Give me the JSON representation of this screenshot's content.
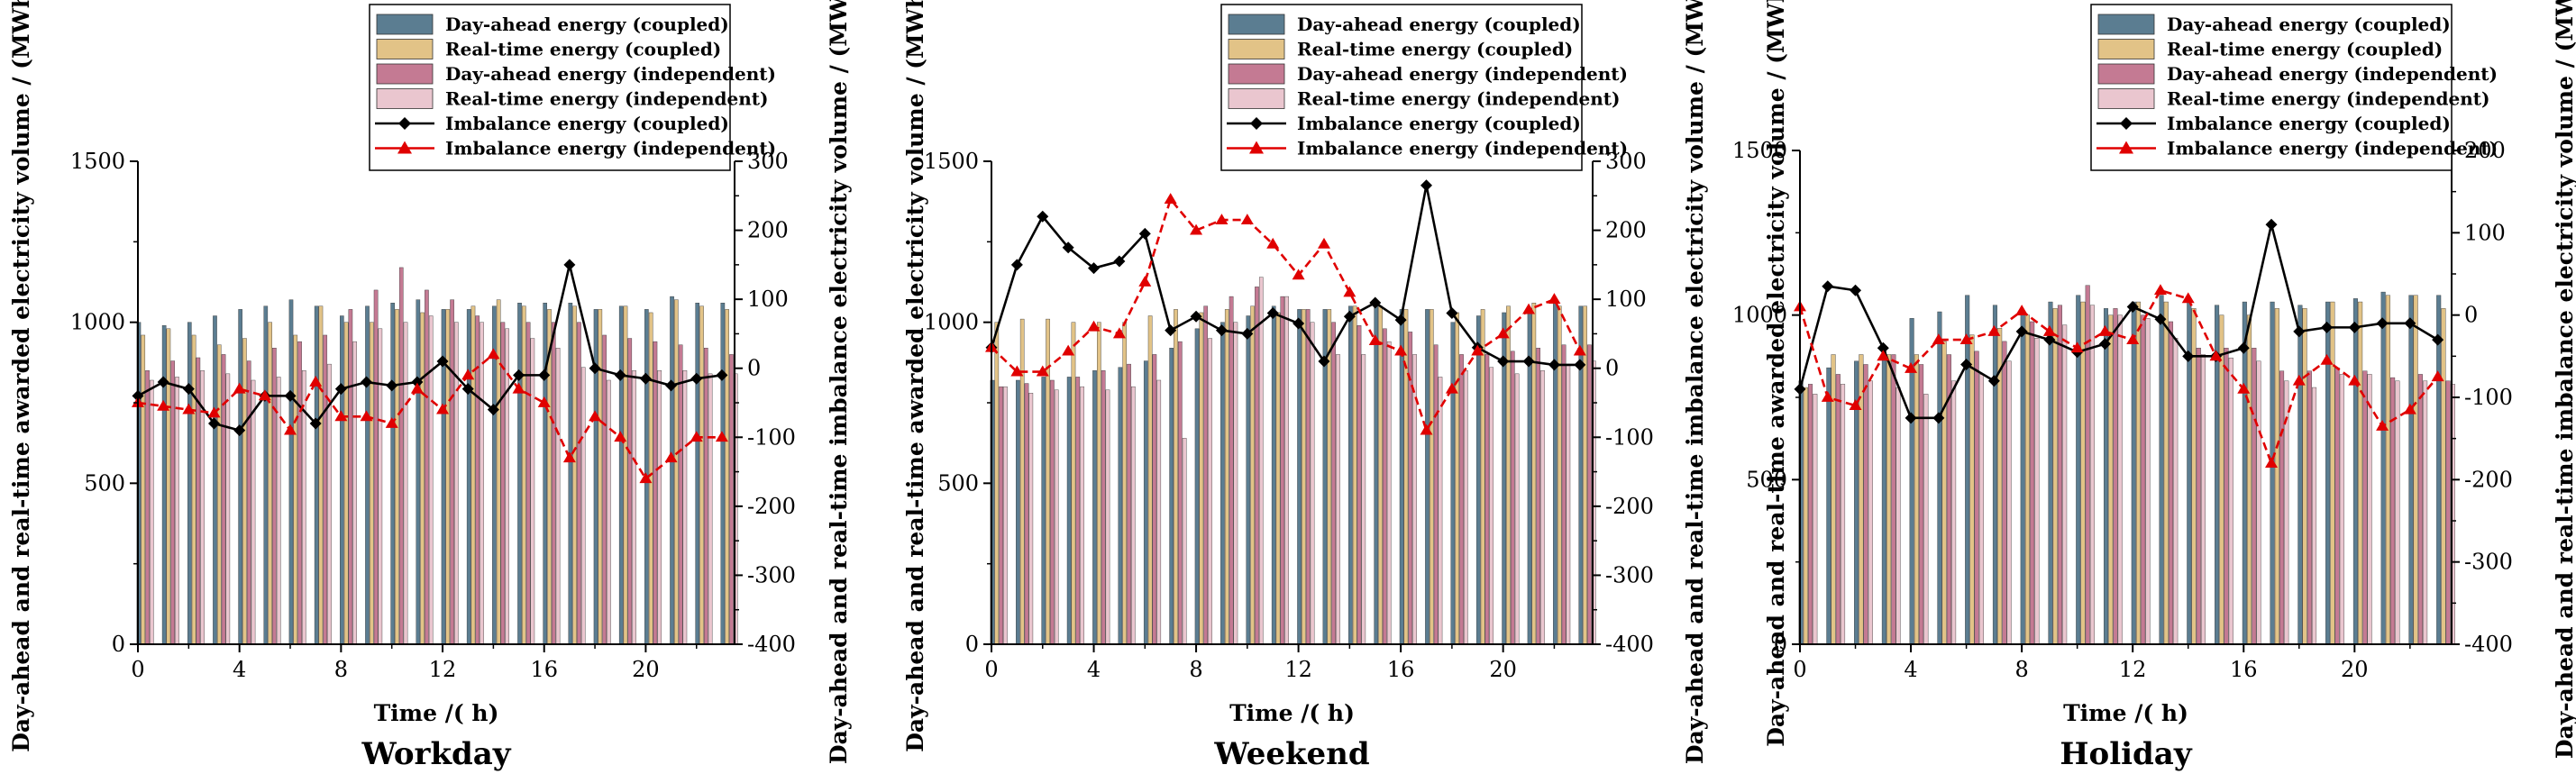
{
  "colors": {
    "da_coupled": "#5b7d91",
    "rt_coupled": "#e2c387",
    "da_independent": "#c47a93",
    "rt_independent": "#eac6cf",
    "imb_coupled": "#000000",
    "imb_independent": "#e00000"
  },
  "chart_data": [
    {
      "type": "bar",
      "title": "Workday",
      "xlabel": "Time /( h)",
      "ylabel": "Day-ahead and real-time awarded electricity volume / (MWh)",
      "y2label": "Day-ahead and real-time imbalance electricity volume / (MWh)",
      "xlim": [
        0,
        23.5
      ],
      "xticks": [
        0,
        4,
        8,
        12,
        16,
        20
      ],
      "ylim": [
        0,
        1500
      ],
      "yticks": [
        0,
        500,
        1000,
        1500
      ],
      "y2lim": [
        -400,
        300
      ],
      "y2ticks": [
        -400,
        -300,
        -200,
        -100,
        0,
        100,
        200,
        300
      ],
      "legend": [
        "Day-ahead energy (coupled)",
        "Real-time energy (coupled)",
        "Day-ahead energy (independent)",
        "Real-time energy (independent)",
        "Imbalance energy (coupled)",
        "Imbalance energy (independent)"
      ],
      "legend_position": "top-right",
      "x": [
        0,
        1,
        2,
        3,
        4,
        5,
        6,
        7,
        8,
        9,
        10,
        11,
        12,
        13,
        14,
        15,
        16,
        17,
        18,
        19,
        20,
        21,
        22,
        23
      ],
      "series": [
        {
          "name": "Day-ahead energy (coupled)",
          "kind": "bar",
          "axis": "left",
          "values": [
            1000,
            990,
            1000,
            1020,
            1040,
            1050,
            1070,
            1050,
            1020,
            1050,
            1060,
            1070,
            1040,
            1040,
            1050,
            1060,
            1060,
            1060,
            1040,
            1050,
            1040,
            1080,
            1060,
            1060
          ]
        },
        {
          "name": "Real-time energy (coupled)",
          "kind": "bar",
          "axis": "left",
          "values": [
            960,
            980,
            960,
            930,
            950,
            1000,
            960,
            1050,
            1000,
            1000,
            1040,
            1030,
            1040,
            1050,
            1070,
            1050,
            1040,
            1050,
            1040,
            1050,
            1030,
            1070,
            1050,
            1040
          ]
        },
        {
          "name": "Day-ahead energy (independent)",
          "kind": "bar",
          "axis": "left",
          "values": [
            850,
            880,
            890,
            900,
            880,
            920,
            940,
            960,
            1040,
            1100,
            1170,
            1100,
            1070,
            1020,
            1000,
            1000,
            1000,
            1000,
            960,
            950,
            940,
            930,
            920,
            900
          ]
        },
        {
          "name": "Real-time energy (independent)",
          "kind": "bar",
          "axis": "left",
          "values": [
            820,
            830,
            850,
            840,
            820,
            830,
            850,
            870,
            940,
            980,
            1000,
            1020,
            1000,
            1000,
            980,
            950,
            920,
            860,
            820,
            850,
            850,
            850,
            840,
            840
          ]
        },
        {
          "name": "Imbalance energy (coupled)",
          "kind": "line",
          "axis": "right",
          "values": [
            -40,
            -20,
            -30,
            -80,
            -90,
            -40,
            -40,
            -80,
            -30,
            -20,
            -25,
            -20,
            10,
            -30,
            -60,
            -10,
            -10,
            150,
            0,
            -10,
            -15,
            -25,
            -15,
            -10
          ]
        },
        {
          "name": "Imbalance energy (independent)",
          "kind": "line",
          "axis": "right",
          "values": [
            -50,
            -55,
            -60,
            -65,
            -30,
            -40,
            -90,
            -20,
            -70,
            -70,
            -80,
            -30,
            -60,
            -10,
            20,
            -30,
            -50,
            -130,
            -70,
            -100,
            -160,
            -130,
            -100,
            -100
          ]
        }
      ]
    },
    {
      "type": "bar",
      "title": "Weekend",
      "xlabel": "Time /( h)",
      "ylabel": "Day-ahead and real-time awarded electricity volume / (MWh)",
      "y2label": "Day-ahead and real-time imbalance electricity volume / (MWh)",
      "xlim": [
        0,
        23.5
      ],
      "xticks": [
        0,
        4,
        8,
        12,
        16,
        20
      ],
      "ylim": [
        0,
        1500
      ],
      "yticks": [
        0,
        500,
        1000,
        1500
      ],
      "y2lim": [
        -400,
        300
      ],
      "y2ticks": [
        -400,
        -300,
        -200,
        -100,
        0,
        100,
        200,
        300
      ],
      "legend": [
        "Day-ahead energy (coupled)",
        "Real-time energy (coupled)",
        "Day-ahead energy (independent)",
        "Real-time energy (independent)",
        "Imbalance energy (coupled)",
        "Imbalance energy (independent)"
      ],
      "legend_position": "top-right",
      "x": [
        0,
        1,
        2,
        3,
        4,
        5,
        6,
        7,
        8,
        9,
        10,
        11,
        12,
        13,
        14,
        15,
        16,
        17,
        18,
        19,
        20,
        21,
        22,
        23
      ],
      "series": [
        {
          "name": "Day-ahead energy (coupled)",
          "kind": "bar",
          "axis": "left",
          "values": [
            820,
            820,
            830,
            830,
            850,
            860,
            880,
            920,
            980,
            1000,
            1020,
            1050,
            1040,
            1040,
            1050,
            1060,
            1040,
            1040,
            1000,
            1020,
            1030,
            1040,
            1060,
            1050
          ]
        },
        {
          "name": "Real-time energy (coupled)",
          "kind": "bar",
          "axis": "left",
          "values": [
            1000,
            1010,
            1010,
            1000,
            1000,
            1000,
            1020,
            1040,
            1030,
            1040,
            1050,
            1030,
            1040,
            1040,
            1050,
            1050,
            1040,
            1040,
            1030,
            1040,
            1050,
            1060,
            1050,
            1050
          ]
        },
        {
          "name": "Day-ahead energy (independent)",
          "kind": "bar",
          "axis": "left",
          "values": [
            800,
            810,
            820,
            830,
            850,
            870,
            900,
            940,
            1050,
            1080,
            1110,
            1080,
            1040,
            1000,
            990,
            980,
            970,
            930,
            900,
            900,
            910,
            920,
            930,
            930
          ]
        },
        {
          "name": "Real-time energy (independent)",
          "kind": "bar",
          "axis": "left",
          "values": [
            800,
            780,
            790,
            800,
            790,
            800,
            820,
            640,
            950,
            1000,
            1140,
            1080,
            1000,
            900,
            900,
            940,
            900,
            830,
            850,
            860,
            840,
            850,
            870,
            880
          ]
        },
        {
          "name": "Imbalance energy (coupled)",
          "kind": "line",
          "axis": "right",
          "values": [
            30,
            150,
            220,
            175,
            145,
            155,
            195,
            55,
            75,
            55,
            50,
            80,
            65,
            10,
            75,
            95,
            70,
            265,
            80,
            30,
            10,
            10,
            5,
            5
          ]
        },
        {
          "name": "Imbalance energy (independent)",
          "kind": "line",
          "axis": "right",
          "values": [
            30,
            -5,
            -5,
            25,
            60,
            50,
            125,
            245,
            200,
            215,
            215,
            180,
            135,
            180,
            110,
            40,
            25,
            -90,
            -30,
            25,
            50,
            85,
            100,
            25
          ]
        }
      ]
    },
    {
      "type": "bar",
      "title": "Holiday",
      "xlabel": "Time /( h)",
      "ylabel": "Day-ahead and real-time awarded electricity volume / (MWh)",
      "y2label": "Day-ahead and real-time imbalance electricity volume / (MWh)",
      "xlim": [
        0,
        23.5
      ],
      "xticks": [
        0,
        4,
        8,
        12,
        16,
        20
      ],
      "ylim": [
        0,
        1500
      ],
      "yticks": [
        0,
        500,
        1000,
        1500
      ],
      "y2lim": [
        -400,
        200
      ],
      "y2ticks": [
        -400,
        -300,
        -200,
        -100,
        0,
        100,
        200
      ],
      "legend": [
        "Day-ahead energy (coupled)",
        "Real-time energy (coupled)",
        "Day-ahead energy (independent)",
        "Real-time energy (independent)",
        "Imbalance energy (coupled)",
        "Imbalance energy (independent)"
      ],
      "legend_position": "top-right",
      "x": [
        0,
        1,
        2,
        3,
        4,
        5,
        6,
        7,
        8,
        9,
        10,
        11,
        12,
        13,
        14,
        15,
        16,
        17,
        18,
        19,
        20,
        21,
        22,
        23
      ],
      "series": [
        {
          "name": "Day-ahead energy (coupled)",
          "kind": "bar",
          "axis": "left",
          "values": [
            800,
            840,
            860,
            890,
            990,
            1010,
            1060,
            1030,
            1010,
            1040,
            1060,
            1020,
            1040,
            1060,
            1040,
            1030,
            1040,
            1040,
            1030,
            1040,
            1050,
            1070,
            1060,
            1060
          ]
        },
        {
          "name": "Real-time energy (coupled)",
          "kind": "bar",
          "axis": "left",
          "values": [
            780,
            880,
            880,
            880,
            880,
            920,
            940,
            960,
            1000,
            1020,
            1040,
            1000,
            1040,
            1040,
            1020,
            1000,
            1000,
            1020,
            1020,
            1040,
            1040,
            1060,
            1060,
            1020
          ]
        },
        {
          "name": "Day-ahead energy (independent)",
          "kind": "bar",
          "axis": "left",
          "values": [
            790,
            820,
            850,
            880,
            850,
            880,
            890,
            920,
            980,
            1030,
            1090,
            1020,
            1000,
            980,
            900,
            900,
            900,
            830,
            830,
            840,
            830,
            810,
            820,
            800
          ]
        },
        {
          "name": "Real-time energy (independent)",
          "kind": "bar",
          "axis": "left",
          "values": [
            760,
            790,
            800,
            780,
            760,
            800,
            820,
            860,
            930,
            970,
            1030,
            1000,
            990,
            930,
            880,
            870,
            860,
            800,
            780,
            820,
            820,
            800,
            800,
            790
          ]
        },
        {
          "name": "Imbalance energy (coupled)",
          "kind": "line",
          "axis": "right",
          "values": [
            -90,
            35,
            30,
            -40,
            -125,
            -125,
            -60,
            -80,
            -20,
            -30,
            -45,
            -35,
            10,
            -5,
            -50,
            -50,
            -40,
            110,
            -20,
            -15,
            -15,
            -10,
            -10,
            -30
          ]
        },
        {
          "name": "Imbalance energy (independent)",
          "kind": "line",
          "axis": "right",
          "values": [
            10,
            -100,
            -110,
            -50,
            -65,
            -30,
            -30,
            -20,
            5,
            -20,
            -40,
            -20,
            -30,
            30,
            20,
            -50,
            -90,
            -180,
            -80,
            -55,
            -80,
            -135,
            -115,
            -75
          ]
        }
      ]
    }
  ]
}
